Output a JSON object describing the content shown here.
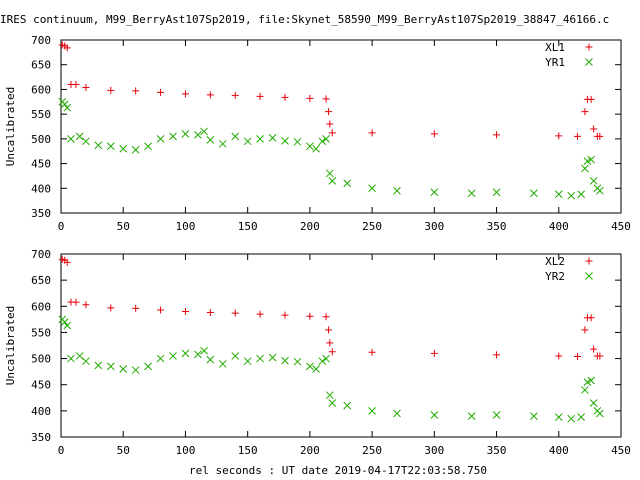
{
  "title": "IRES continuum, M99_BerryAst107Sp2019, file:Skynet_58590_M99_BerryAst107Sp2019_38847_46166.c",
  "xlabel": "rel seconds : UT date 2019-04-17T22:03:58.750",
  "colors": {
    "red": "#e8000a",
    "green": "#22aa00"
  },
  "chart_data": [
    {
      "type": "scatter",
      "ylabel": "Uncalibrated",
      "xlim": [
        0,
        450
      ],
      "ylim": [
        350,
        700
      ],
      "x_ticks": [
        0,
        50,
        100,
        150,
        200,
        250,
        300,
        350,
        400,
        450
      ],
      "y_ticks": [
        350,
        400,
        450,
        500,
        550,
        600,
        650,
        700
      ],
      "series": [
        {
          "name": "XL1",
          "marker": "plus",
          "color": "#e8000a",
          "points": [
            [
              1,
              690
            ],
            [
              3,
              688
            ],
            [
              5,
              684
            ],
            [
              8,
              610
            ],
            [
              12,
              610
            ],
            [
              20,
              604
            ],
            [
              40,
              598
            ],
            [
              60,
              597
            ],
            [
              80,
              594
            ],
            [
              100,
              591
            ],
            [
              120,
              589
            ],
            [
              140,
              588
            ],
            [
              160,
              586
            ],
            [
              180,
              584
            ],
            [
              200,
              582
            ],
            [
              213,
              581
            ],
            [
              215,
              555
            ],
            [
              216,
              530
            ],
            [
              218,
              512
            ],
            [
              250,
              512
            ],
            [
              300,
              510
            ],
            [
              350,
              508
            ],
            [
              400,
              506
            ],
            [
              415,
              505
            ],
            [
              421,
              555
            ],
            [
              423,
              580
            ],
            [
              426,
              580
            ],
            [
              428,
              520
            ],
            [
              431,
              505
            ],
            [
              433,
              505
            ]
          ]
        },
        {
          "name": "YR1",
          "marker": "cross",
          "color": "#22aa00",
          "points": [
            [
              1,
              575
            ],
            [
              3,
              570
            ],
            [
              5,
              563
            ],
            [
              8,
              500
            ],
            [
              15,
              505
            ],
            [
              20,
              495
            ],
            [
              30,
              487
            ],
            [
              40,
              485
            ],
            [
              50,
              480
            ],
            [
              60,
              478
            ],
            [
              70,
              485
            ],
            [
              80,
              500
            ],
            [
              90,
              505
            ],
            [
              100,
              510
            ],
            [
              110,
              508
            ],
            [
              115,
              515
            ],
            [
              120,
              498
            ],
            [
              130,
              490
            ],
            [
              140,
              505
            ],
            [
              150,
              495
            ],
            [
              160,
              500
            ],
            [
              170,
              502
            ],
            [
              180,
              496
            ],
            [
              190,
              494
            ],
            [
              200,
              485
            ],
            [
              205,
              480
            ],
            [
              210,
              495
            ],
            [
              213,
              500
            ],
            [
              216,
              430
            ],
            [
              218,
              415
            ],
            [
              230,
              410
            ],
            [
              250,
              400
            ],
            [
              270,
              395
            ],
            [
              300,
              392
            ],
            [
              330,
              390
            ],
            [
              350,
              392
            ],
            [
              380,
              390
            ],
            [
              400,
              388
            ],
            [
              410,
              385
            ],
            [
              418,
              388
            ],
            [
              421,
              440
            ],
            [
              423,
              455
            ],
            [
              426,
              458
            ],
            [
              428,
              415
            ],
            [
              431,
              400
            ],
            [
              433,
              395
            ]
          ]
        }
      ]
    },
    {
      "type": "scatter",
      "ylabel": "Uncalibrated",
      "xlim": [
        0,
        450
      ],
      "ylim": [
        350,
        700
      ],
      "x_ticks": [
        0,
        50,
        100,
        150,
        200,
        250,
        300,
        350,
        400,
        450
      ],
      "y_ticks": [
        350,
        400,
        450,
        500,
        550,
        600,
        650,
        700
      ],
      "series": [
        {
          "name": "XL2",
          "marker": "plus",
          "color": "#e8000a",
          "points": [
            [
              1,
              690
            ],
            [
              3,
              688
            ],
            [
              5,
              684
            ],
            [
              8,
              608
            ],
            [
              12,
              608
            ],
            [
              20,
              603
            ],
            [
              40,
              597
            ],
            [
              60,
              596
            ],
            [
              80,
              593
            ],
            [
              100,
              590
            ],
            [
              120,
              588
            ],
            [
              140,
              587
            ],
            [
              160,
              585
            ],
            [
              180,
              583
            ],
            [
              200,
              581
            ],
            [
              213,
              580
            ],
            [
              215,
              555
            ],
            [
              216,
              530
            ],
            [
              218,
              513
            ],
            [
              250,
              512
            ],
            [
              300,
              510
            ],
            [
              350,
              507
            ],
            [
              400,
              505
            ],
            [
              415,
              504
            ],
            [
              421,
              555
            ],
            [
              423,
              578
            ],
            [
              426,
              578
            ],
            [
              428,
              518
            ],
            [
              431,
              505
            ],
            [
              433,
              505
            ]
          ]
        },
        {
          "name": "YR2",
          "marker": "cross",
          "color": "#22aa00",
          "points": [
            [
              1,
              575
            ],
            [
              3,
              570
            ],
            [
              5,
              563
            ],
            [
              8,
              500
            ],
            [
              15,
              505
            ],
            [
              20,
              495
            ],
            [
              30,
              487
            ],
            [
              40,
              485
            ],
            [
              50,
              480
            ],
            [
              60,
              478
            ],
            [
              70,
              485
            ],
            [
              80,
              500
            ],
            [
              90,
              505
            ],
            [
              100,
              510
            ],
            [
              110,
              508
            ],
            [
              115,
              515
            ],
            [
              120,
              498
            ],
            [
              130,
              490
            ],
            [
              140,
              505
            ],
            [
              150,
              495
            ],
            [
              160,
              500
            ],
            [
              170,
              502
            ],
            [
              180,
              496
            ],
            [
              190,
              494
            ],
            [
              200,
              485
            ],
            [
              205,
              480
            ],
            [
              210,
              495
            ],
            [
              213,
              500
            ],
            [
              216,
              430
            ],
            [
              218,
              415
            ],
            [
              230,
              410
            ],
            [
              250,
              400
            ],
            [
              270,
              395
            ],
            [
              300,
              392
            ],
            [
              330,
              390
            ],
            [
              350,
              392
            ],
            [
              380,
              390
            ],
            [
              400,
              388
            ],
            [
              410,
              385
            ],
            [
              418,
              388
            ],
            [
              421,
              440
            ],
            [
              423,
              455
            ],
            [
              426,
              458
            ],
            [
              428,
              415
            ],
            [
              431,
              400
            ],
            [
              433,
              395
            ]
          ]
        }
      ]
    }
  ]
}
